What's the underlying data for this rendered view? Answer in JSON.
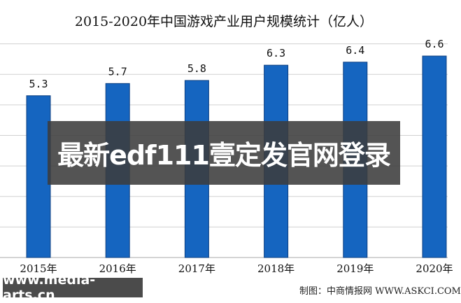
{
  "chart_data": {
    "type": "bar",
    "title": "2015-2020年中国游戏产业用户规模统计（亿人）",
    "categories": [
      "2015年",
      "2016年",
      "2017年",
      "2018年",
      "2019年",
      "2020年"
    ],
    "values": [
      5.3,
      5.7,
      5.8,
      6.3,
      6.4,
      6.6
    ],
    "data_labels": [
      "5.3",
      "5.7",
      "5.8",
      "6.3",
      "6.4",
      "6.6"
    ],
    "xlabel": "",
    "ylabel": "",
    "ylim": [
      0,
      8
    ],
    "grid": true,
    "bar_color": "#1565c0"
  },
  "overlay": {
    "banner_text": "最新edf111壹定发官网登录",
    "site_text": "www.media-arts.cn"
  },
  "source": "制图：中商情报网 WWW.ASKCI.COM"
}
